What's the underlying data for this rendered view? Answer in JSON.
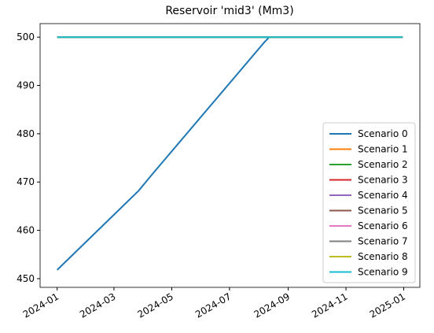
{
  "chart_data": {
    "type": "line",
    "title": "Reservoir 'mid3' (Mm3)",
    "x": [
      "2024-01-01",
      "2024-03-27",
      "2024-04-10",
      "2024-08-07",
      "2024-08-12",
      "2024-12-31"
    ],
    "series": [
      {
        "name": "Scenario 0",
        "color": "#1f77b4",
        "values": [
          451.8,
          468.2,
          471.5,
          499,
          500,
          500
        ]
      },
      {
        "name": "Scenario 1",
        "color": "#ff7f0e",
        "values": [
          500,
          500,
          500,
          500,
          500,
          500
        ]
      },
      {
        "name": "Scenario 2",
        "color": "#2ca02c",
        "values": [
          500,
          500,
          500,
          500,
          500,
          500
        ]
      },
      {
        "name": "Scenario 3",
        "color": "#d62728",
        "values": [
          500,
          500,
          500,
          500,
          500,
          500
        ]
      },
      {
        "name": "Scenario 4",
        "color": "#9467bd",
        "values": [
          500,
          500,
          500,
          500,
          500,
          500
        ]
      },
      {
        "name": "Scenario 5",
        "color": "#8c564b",
        "values": [
          500,
          500,
          500,
          500,
          500,
          500
        ]
      },
      {
        "name": "Scenario 6",
        "color": "#e377c2",
        "values": [
          500,
          500,
          500,
          500,
          500,
          500
        ]
      },
      {
        "name": "Scenario 7",
        "color": "#7f7f7f",
        "values": [
          500,
          500,
          500,
          500,
          500,
          500
        ]
      },
      {
        "name": "Scenario 8",
        "color": "#bcbd22",
        "values": [
          500,
          500,
          500,
          500,
          500,
          500
        ]
      },
      {
        "name": "Scenario 9",
        "color": "#17becf",
        "values": [
          500,
          500,
          500,
          500,
          500,
          500
        ]
      }
    ],
    "xlim": [
      "2023-12-14",
      "2025-01-18"
    ],
    "xticks": [
      {
        "value": "2024-01-01",
        "label": "2024-01"
      },
      {
        "value": "2024-03-01",
        "label": "2024-03"
      },
      {
        "value": "2024-05-01",
        "label": "2024-05"
      },
      {
        "value": "2024-07-01",
        "label": "2024-07"
      },
      {
        "value": "2024-09-01",
        "label": "2024-09"
      },
      {
        "value": "2024-11-01",
        "label": "2024-11"
      },
      {
        "value": "2025-01-01",
        "label": "2025-01"
      }
    ],
    "ylim": [
      448.2,
      502.8
    ],
    "yticks": [
      450,
      460,
      470,
      480,
      490,
      500
    ],
    "legend": "lower right"
  }
}
